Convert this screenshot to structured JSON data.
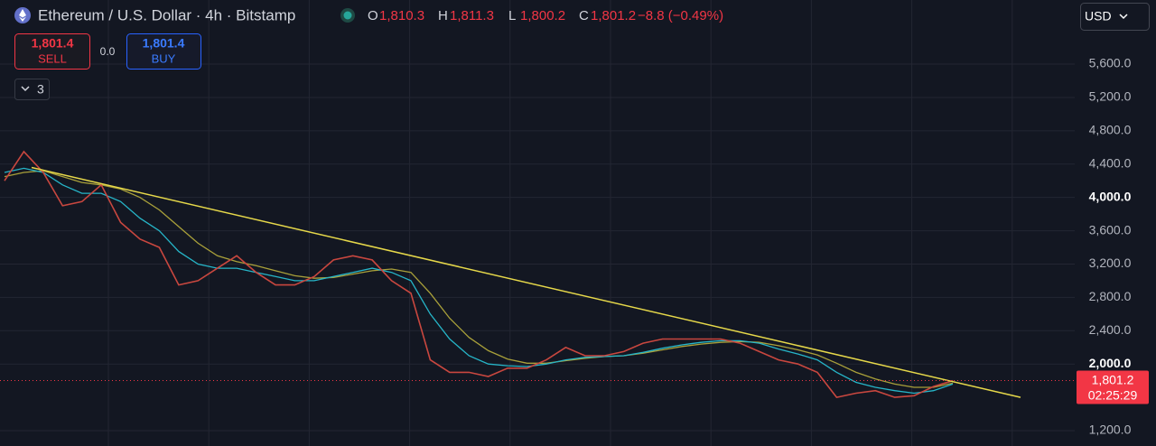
{
  "header": {
    "symbol": "Ethereum / U.S. Dollar · 4h · Bitstamp",
    "ohlc": [
      {
        "key": "O",
        "value": "1,810.3"
      },
      {
        "key": "H",
        "value": "1,811.3"
      },
      {
        "key": "L",
        "value": "1,800.2"
      },
      {
        "key": "C",
        "value": "1,801.2"
      }
    ],
    "change": "−8.8 (−0.49%)"
  },
  "trade": {
    "sell_price": "1,801.4",
    "sell_label": "SELL",
    "spread": "0.0",
    "buy_price": "1,801.4",
    "buy_label": "BUY"
  },
  "indicators_toggle": "3",
  "currency": "USD",
  "price_tag": {
    "price": "1,801.2",
    "countdown": "02:25:29"
  },
  "chart_data": {
    "type": "line",
    "ylim": [
      1016,
      6370
    ],
    "yticks": [
      {
        "value": 1200,
        "label": "1,200.0"
      },
      {
        "value": 2000,
        "label": "2,000.0"
      },
      {
        "value": 2400,
        "label": "2,400.0"
      },
      {
        "value": 2800,
        "label": "2,800.0"
      },
      {
        "value": 3200,
        "label": "3,200.0"
      },
      {
        "value": 3600,
        "label": "3,600.0"
      },
      {
        "value": 4000,
        "label": "4,000.0"
      },
      {
        "value": 4400,
        "label": "4,400.0"
      },
      {
        "value": 4800,
        "label": "4,800.0"
      },
      {
        "value": 5200,
        "label": "5,200.0"
      },
      {
        "value": 5600,
        "label": "5,600.0"
      }
    ],
    "grid": true,
    "last_price": 1801.2,
    "series": [
      {
        "color": "#c9473f",
        "values": [
          4200,
          4550,
          4300,
          3900,
          3950,
          4150,
          3700,
          3500,
          3400,
          2950,
          3000,
          3150,
          3300,
          3100,
          2950,
          2950,
          3050,
          3250,
          3300,
          3250,
          3000,
          2850,
          2050,
          1900,
          1900,
          1850,
          1950,
          1950,
          2050,
          2200,
          2100,
          2100,
          2150,
          2250,
          2300,
          2300,
          2300,
          2300,
          2250,
          2150,
          2050,
          2000,
          1900,
          1600,
          1650,
          1680,
          1600,
          1620,
          1730,
          1800
        ]
      },
      {
        "color": "#26b5c8",
        "values": [
          4300,
          4350,
          4300,
          4150,
          4050,
          4050,
          3950,
          3750,
          3600,
          3350,
          3200,
          3150,
          3150,
          3100,
          3050,
          3000,
          3000,
          3050,
          3100,
          3150,
          3100,
          3000,
          2600,
          2300,
          2100,
          2000,
          1980,
          1970,
          2000,
          2050,
          2080,
          2090,
          2100,
          2140,
          2190,
          2230,
          2260,
          2280,
          2280,
          2250,
          2180,
          2120,
          2050,
          1900,
          1780,
          1720,
          1680,
          1650,
          1680,
          1760
        ]
      },
      {
        "color": "#a9a03a",
        "values": [
          4250,
          4300,
          4320,
          4250,
          4180,
          4150,
          4100,
          4000,
          3850,
          3650,
          3450,
          3300,
          3230,
          3180,
          3120,
          3060,
          3030,
          3040,
          3080,
          3120,
          3140,
          3100,
          2850,
          2550,
          2320,
          2160,
          2060,
          2010,
          2010,
          2040,
          2070,
          2090,
          2100,
          2130,
          2170,
          2210,
          2240,
          2260,
          2270,
          2260,
          2220,
          2170,
          2110,
          2010,
          1900,
          1820,
          1760,
          1720,
          1720,
          1770
        ]
      }
    ],
    "trendline": {
      "color": "#e6d84a",
      "values": [
        4360,
        1600
      ]
    }
  }
}
